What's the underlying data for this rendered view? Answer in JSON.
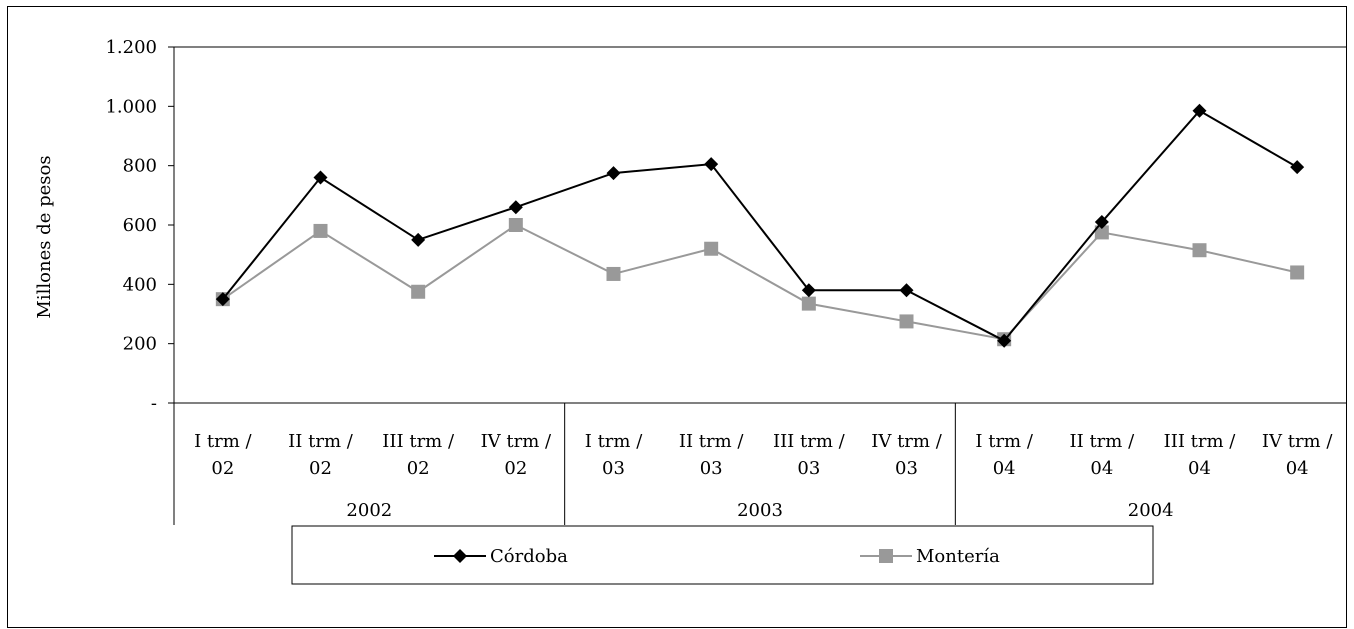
{
  "chart_data": {
    "type": "line",
    "ylabel": "Millones de pesos",
    "ylim": [
      0,
      1200
    ],
    "yticks": [
      {
        "value": 0,
        "label": "-"
      },
      {
        "value": 200,
        "label": "200"
      },
      {
        "value": 400,
        "label": "400"
      },
      {
        "value": 600,
        "label": "600"
      },
      {
        "value": 800,
        "label": "800"
      },
      {
        "value": 1000,
        "label": "1.000"
      },
      {
        "value": 1200,
        "label": "1.200"
      }
    ],
    "categories": [
      {
        "line1": "I trm /",
        "line2": "02"
      },
      {
        "line1": "II trm /",
        "line2": "02"
      },
      {
        "line1": "III trm /",
        "line2": "02"
      },
      {
        "line1": "IV trm /",
        "line2": "02"
      },
      {
        "line1": "I trm /",
        "line2": "03"
      },
      {
        "line1": "II trm /",
        "line2": "03"
      },
      {
        "line1": "III trm /",
        "line2": "03"
      },
      {
        "line1": "IV trm /",
        "line2": "03"
      },
      {
        "line1": "I trm /",
        "line2": "04"
      },
      {
        "line1": "II trm /",
        "line2": "04"
      },
      {
        "line1": "III trm /",
        "line2": "04"
      },
      {
        "line1": "IV trm /",
        "line2": "04"
      }
    ],
    "groups": [
      {
        "label": "2002",
        "span": 4
      },
      {
        "label": "2003",
        "span": 4
      },
      {
        "label": "2004",
        "span": 4
      }
    ],
    "series": [
      {
        "name": "Córdoba",
        "color": "#000000",
        "marker": "diamond",
        "values": [
          350,
          760,
          550,
          660,
          775,
          805,
          380,
          380,
          210,
          610,
          985,
          795
        ]
      },
      {
        "name": "Montería",
        "color": "#999999",
        "marker": "square",
        "values": [
          350,
          580,
          375,
          600,
          435,
          520,
          335,
          275,
          215,
          575,
          515,
          440
        ]
      }
    ],
    "legend_position": "bottom",
    "grid": false
  }
}
